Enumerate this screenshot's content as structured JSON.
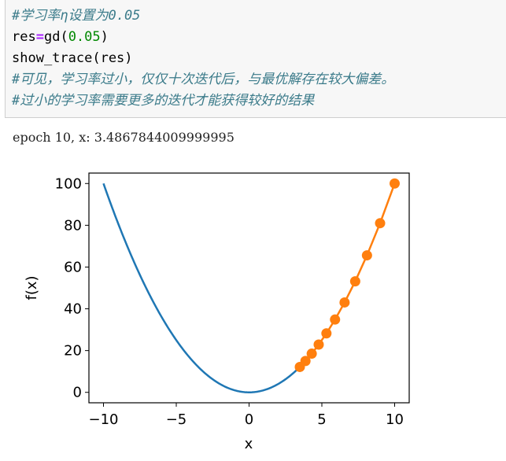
{
  "code_cell": {
    "line1": "#学习率η设置为0.05",
    "line2": {
      "name": "res",
      "op": "=",
      "func": "gd(",
      "num": "0.05",
      "close": ")"
    },
    "line3": "show_trace(res)",
    "line4": "#可见，学习率过小，仅仅十次迭代后，与最优解存在较大偏差。",
    "line5": "#过小的学习率需要更多的迭代才能获得较好的结果"
  },
  "output": {
    "text": "epoch 10, x: 3.4867844009999995"
  },
  "colors": {
    "curve": "#1f77b4",
    "trace": "#ff7f0e",
    "comment": "#3b7b8a",
    "operator": "#aa22ff",
    "number": "#008800"
  },
  "chart_data": {
    "type": "line",
    "title": "",
    "xlabel": "x",
    "ylabel": "f(x)",
    "xlim": [
      -11,
      11
    ],
    "ylim": [
      -5,
      105
    ],
    "xticks": [
      -10,
      -5,
      0,
      5,
      10
    ],
    "yticks": [
      0,
      20,
      40,
      60,
      80,
      100
    ],
    "xtick_labels": [
      "−10",
      "−5",
      "0",
      "5",
      "10"
    ],
    "ytick_labels": [
      "0",
      "20",
      "40",
      "60",
      "80",
      "100"
    ],
    "grid": false,
    "series": [
      {
        "function": "x^2",
        "x_range": [
          -10,
          3.4867844009999995
        ],
        "style": "line"
      },
      {
        "style": "line+markers",
        "x": [
          10,
          9,
          8.1,
          7.29,
          6.561,
          5.9049,
          5.31441,
          4.782969,
          4.3046721,
          3.87420489,
          3.486784401
        ],
        "y": [
          100,
          81,
          65.61,
          53.1441,
          43.046721,
          34.86784401,
          28.2429536481,
          22.876792455,
          18.5302018885,
          15.0094635297,
          12.1576654591
        ]
      }
    ]
  }
}
